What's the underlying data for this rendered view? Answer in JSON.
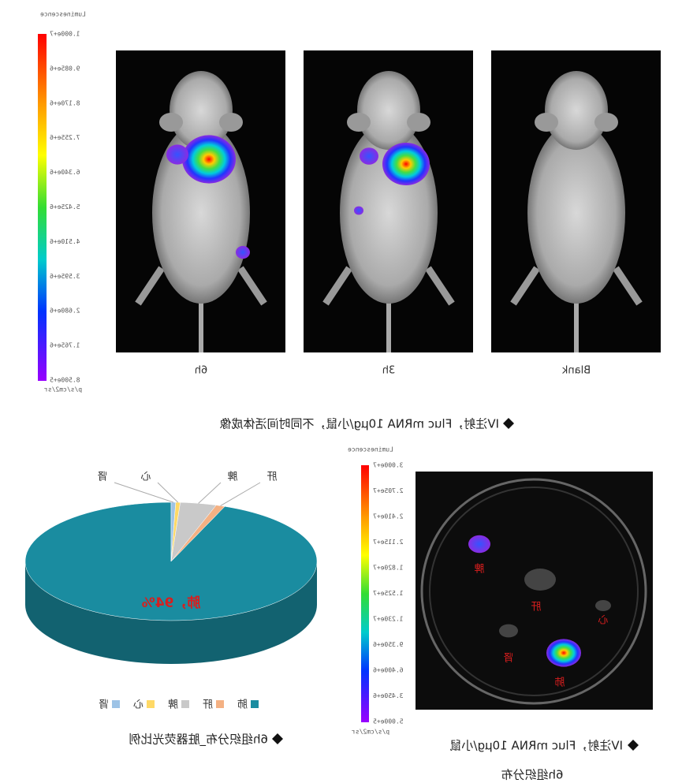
{
  "top_panel": {
    "colorbar": {
      "title": "Luminescence",
      "unit": "p/s/cm2/sr",
      "labels": [
        "1.000e+7",
        "9.085e+6",
        "8.170e+6",
        "7.255e+6",
        "6.340e+6",
        "5.425e+6",
        "4.510e+6",
        "3.595e+6",
        "2.680e+6",
        "1.765e+6",
        "8.500e+5"
      ]
    },
    "panels": [
      {
        "label": "Blank"
      },
      {
        "label": "3h"
      },
      {
        "label": "6h"
      }
    ],
    "caption": "IV注射，Fluc mRNA 10μg/小鼠，不同时间活体成像"
  },
  "chart_data": {
    "type": "pie",
    "title": "6h组织分布_脏器荧光比例",
    "categories": [
      "肺",
      "肝",
      "脾",
      "心",
      "肾"
    ],
    "values": [
      94,
      1,
      4,
      0.5,
      0.5
    ],
    "value_labels": [
      "肺，94%",
      null,
      null,
      null,
      null
    ],
    "colors": [
      "#1a8ca0",
      "#f4b183",
      "#c9c9c9",
      "#ffd966",
      "#9dc3e6"
    ]
  },
  "organ_panel": {
    "colorbar": {
      "title": "Luminescence",
      "unit": "p/s/cm2/sr",
      "labels": [
        "3.000e+7",
        "2.705e+7",
        "2.410e+7",
        "2.115e+7",
        "1.820e+7",
        "1.525e+7",
        "1.230e+7",
        "9.350e+6",
        "6.400e+6",
        "3.450e+6",
        "5.000e+5"
      ]
    },
    "organs": [
      "脾",
      "肝",
      "心",
      "肾",
      "肺"
    ],
    "caption": [
      "IV注射，Fluc mRNA 10μg/小鼠",
      "6h组织分布"
    ]
  }
}
